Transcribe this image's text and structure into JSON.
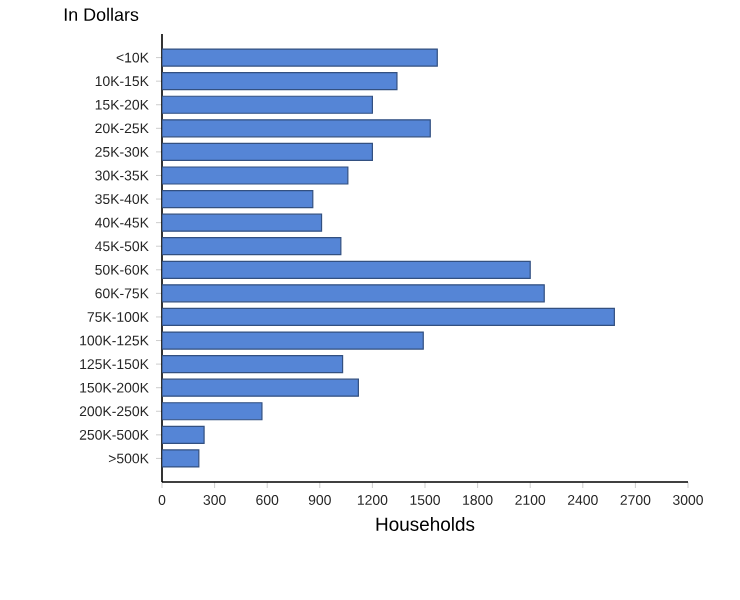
{
  "chart_data": {
    "type": "bar",
    "orientation": "horizontal",
    "ylabel": "In Dollars",
    "xlabel": "Households",
    "categories": [
      "<10K",
      "10K-15K",
      "15K-20K",
      "20K-25K",
      "25K-30K",
      "30K-35K",
      "35K-40K",
      "40K-45K",
      "45K-50K",
      "50K-60K",
      "60K-75K",
      "75K-100K",
      "100K-125K",
      "125K-150K",
      "150K-200K",
      "200K-250K",
      "250K-500K",
      ">500K"
    ],
    "values": [
      1570,
      1340,
      1200,
      1530,
      1200,
      1060,
      860,
      910,
      1020,
      2100,
      2180,
      2580,
      1490,
      1030,
      1120,
      570,
      240,
      210
    ],
    "color": "#5585d6",
    "xlim": [
      0,
      3000
    ],
    "xticks": [
      0,
      300,
      600,
      900,
      1200,
      1500,
      1800,
      2100,
      2400,
      2700,
      3000
    ],
    "grid": false
  }
}
